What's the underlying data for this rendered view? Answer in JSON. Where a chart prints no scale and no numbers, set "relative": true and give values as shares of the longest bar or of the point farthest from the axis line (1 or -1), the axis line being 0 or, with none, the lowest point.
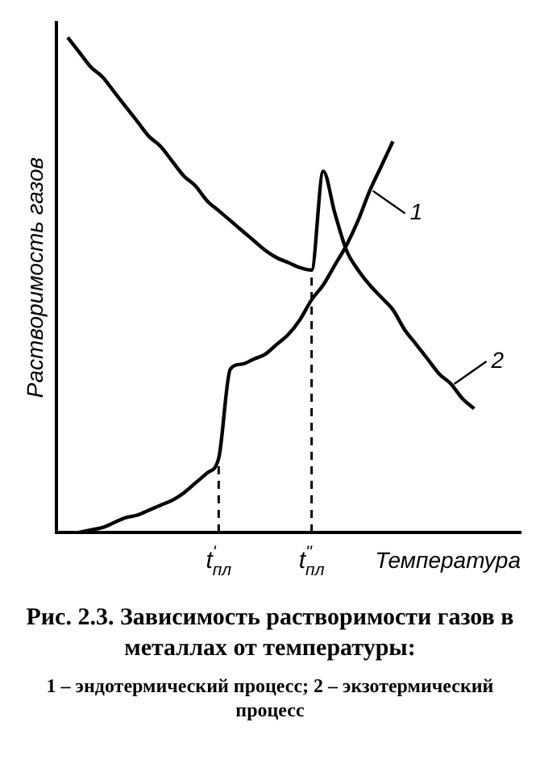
{
  "chart_data": {
    "type": "line",
    "relative": true,
    "ylabel": "Растворимость газов",
    "xlabel": "Температура",
    "categories": [
      null,
      null,
      null,
      null,
      null,
      null,
      null,
      null,
      null,
      null,
      null,
      null,
      null,
      null,
      "t$^{'}$$_{пл}$",
      null,
      null,
      null,
      null,
      null,
      null,
      null,
      "t$^{''}$$_{пл}$",
      null,
      null,
      null,
      null,
      null,
      null,
      null,
      null,
      null,
      null,
      null,
      null,
      null,
      null,
      null,
      null,
      null,
      null
    ],
    "series": [
      {
        "name": "1",
        "color": "#000000",
        "values": [
          null,
          null,
          0,
          0.005,
          0.01,
          0.02,
          0.03,
          0.035,
          0.045,
          0.055,
          0.065,
          0.08,
          0.1,
          0.12,
          0.15,
          0.33,
          0.34,
          0.35,
          0.36,
          0.38,
          0.4,
          0.43,
          0.47,
          0.5,
          0.54,
          0.58,
          0.63,
          0.69,
          0.74,
          0.79,
          null,
          null,
          null,
          null,
          null,
          null,
          null,
          null,
          null,
          null,
          null
        ]
      },
      {
        "name": "2",
        "color": "#000000",
        "values": [
          null,
          1,
          0.97,
          0.94,
          0.92,
          0.89,
          0.86,
          0.83,
          0.8,
          0.78,
          0.75,
          0.72,
          0.7,
          0.67,
          0.65,
          0.63,
          0.61,
          0.59,
          0.57,
          0.555,
          0.545,
          0.535,
          0.53,
          0.73,
          0.645,
          0.57,
          0.53,
          0.5,
          0.475,
          0.45,
          0.41,
          0.38,
          0.35,
          0.32,
          0.3,
          0.27,
          0.25,
          null,
          null,
          null,
          null
        ]
      }
    ],
    "ref_lines": [
      {
        "axis": "x",
        "value": "t$^{'}$$_{пл}$",
        "line_style": "dashed"
      },
      {
        "axis": "x",
        "value": "t$^{''}$$_{пл}$",
        "line_style": "dashed"
      }
    ],
    "grid": false,
    "legend": "right",
    "marker": "none",
    "line_style": "solid",
    "annotations": [
      "Рис. 2.3. Зависимость растворимости газов в металлах от температуры:",
      "1 – эндотермический процесс; 2 – экзотермический процесс"
    ]
  }
}
